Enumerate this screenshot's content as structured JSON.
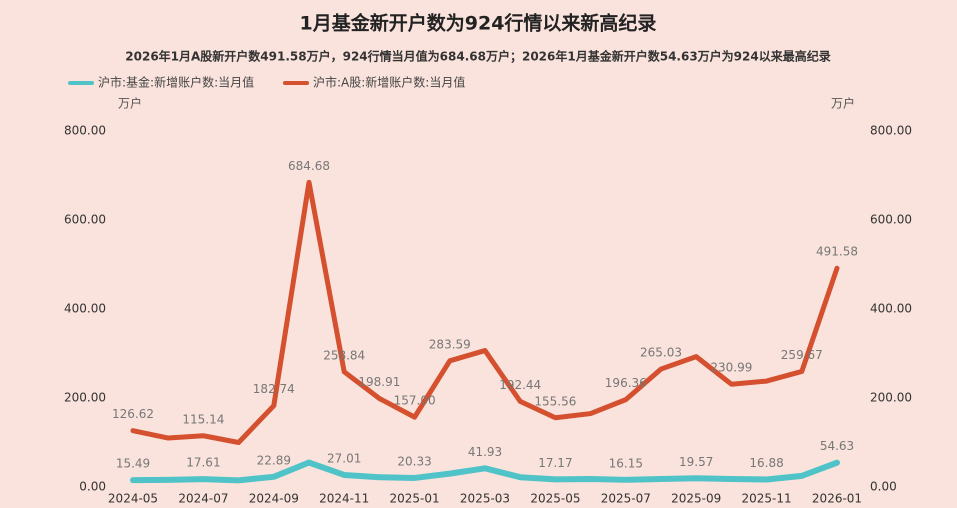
{
  "chart_data": {
    "type": "line",
    "title": "1月基金新开户数为924行情以来新高纪录",
    "subtitle": "2026年1月A股新开户数491.58万户，924行情当月值为684.68万户；2026年1月基金新开户数54.63万户为924以来最高纪录",
    "y_unit": "万户",
    "y2_unit": "万户",
    "categories": [
      "2024-05",
      null,
      "2024-07",
      null,
      "2024-09",
      null,
      "2024-11",
      null,
      "2025-01",
      null,
      "2025-03",
      null,
      "2025-05",
      null,
      "2025-07",
      null,
      "2025-09",
      null,
      "2025-11",
      null,
      "2026-01"
    ],
    "series": [
      {
        "name": "沪市:基金:新增账户数:当月值",
        "color": "#4fc3c7",
        "values": [
          15.49,
          16,
          17.61,
          15,
          22.89,
          55,
          27.01,
          22,
          20.33,
          30,
          41.93,
          22,
          17.17,
          18,
          16.15,
          18,
          19.57,
          18,
          16.88,
          25,
          54.63
        ],
        "value_labels": [
          "15.49",
          null,
          "17.61",
          null,
          "22.89",
          null,
          "27.01",
          null,
          "20.33",
          null,
          "41.93",
          null,
          "17.17",
          null,
          "16.15",
          null,
          "19.57",
          null,
          "16.88",
          null,
          "54.63"
        ]
      },
      {
        "name": "沪市:A股:新增账户数:当月值",
        "color": "#d4502f",
        "values": [
          126.62,
          110,
          115.14,
          100,
          182.74,
          684.68,
          258.84,
          198.91,
          157,
          283.59,
          306.55,
          192.44,
          155.56,
          165,
          196.36,
          265.03,
          293,
          230.99,
          238,
          259.67,
          491.58
        ],
        "value_labels": [
          "126.62",
          null,
          "115.14",
          null,
          "182.74",
          "684.68",
          "258.84",
          "198.91",
          "157.00",
          "283.59",
          null,
          "192.44",
          "155.56",
          null,
          "196.36",
          "265.03",
          null,
          "230.99",
          null,
          "259.67",
          "491.58"
        ]
      }
    ],
    "ylim": [
      0,
      800
    ],
    "yticks": [
      {
        "value": 0,
        "label": "0.00"
      },
      {
        "value": 200,
        "label": "200.00"
      },
      {
        "value": 400,
        "label": "400.00"
      },
      {
        "value": 600,
        "label": "600.00"
      },
      {
        "value": 800,
        "label": "800.00"
      }
    ],
    "y2lim": [
      0,
      800
    ],
    "y2ticks": [
      {
        "value": 0,
        "label": "0.00"
      },
      {
        "value": 200,
        "label": "200.00"
      },
      {
        "value": 400,
        "label": "400.00"
      },
      {
        "value": 600,
        "label": "600.00"
      },
      {
        "value": 800,
        "label": "800.00"
      }
    ],
    "grid": false
  }
}
